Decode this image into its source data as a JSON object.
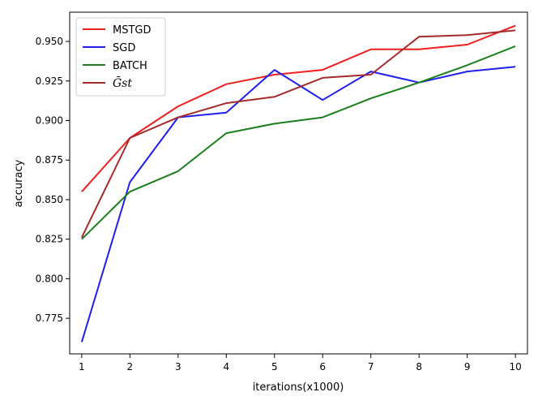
{
  "chart_data": {
    "type": "line",
    "title": "",
    "xlabel": "iterations(x1000)",
    "ylabel": "accuracy",
    "x": [
      1,
      2,
      3,
      4,
      5,
      6,
      7,
      8,
      9,
      10
    ],
    "xlim": [
      0.75,
      10.25
    ],
    "ylim": [
      0.7525,
      0.9685
    ],
    "xticks": [
      "1",
      "2",
      "3",
      "4",
      "5",
      "6",
      "7",
      "8",
      "9",
      "10"
    ],
    "yticks": [
      0.775,
      0.8,
      0.825,
      0.85,
      0.875,
      0.9,
      0.925,
      0.95
    ],
    "ytick_labels": [
      "0.775",
      "0.800",
      "0.825",
      "0.850",
      "0.875",
      "0.900",
      "0.925",
      "0.950"
    ],
    "grid": false,
    "legend_position": "top-left",
    "series": [
      {
        "name": "MSTGD",
        "color": "#ee1f1f",
        "values": [
          0.855,
          0.889,
          0.909,
          0.923,
          0.929,
          0.932,
          0.945,
          0.945,
          0.948,
          0.96
        ]
      },
      {
        "name": "SGD",
        "color": "#1f1fee",
        "values": [
          0.76,
          0.861,
          0.902,
          0.905,
          0.932,
          0.913,
          0.931,
          0.924,
          0.931,
          0.934
        ]
      },
      {
        "name": "BATCH",
        "color": "#1a7f1a",
        "values": [
          0.825,
          0.855,
          0.868,
          0.892,
          0.898,
          0.902,
          0.914,
          0.924,
          0.935,
          0.947
        ]
      },
      {
        "name": "Ḡst",
        "color": "#a52a2a",
        "values": [
          0.826,
          0.889,
          0.902,
          0.911,
          0.915,
          0.927,
          0.929,
          0.953,
          0.954,
          0.957
        ]
      }
    ]
  }
}
